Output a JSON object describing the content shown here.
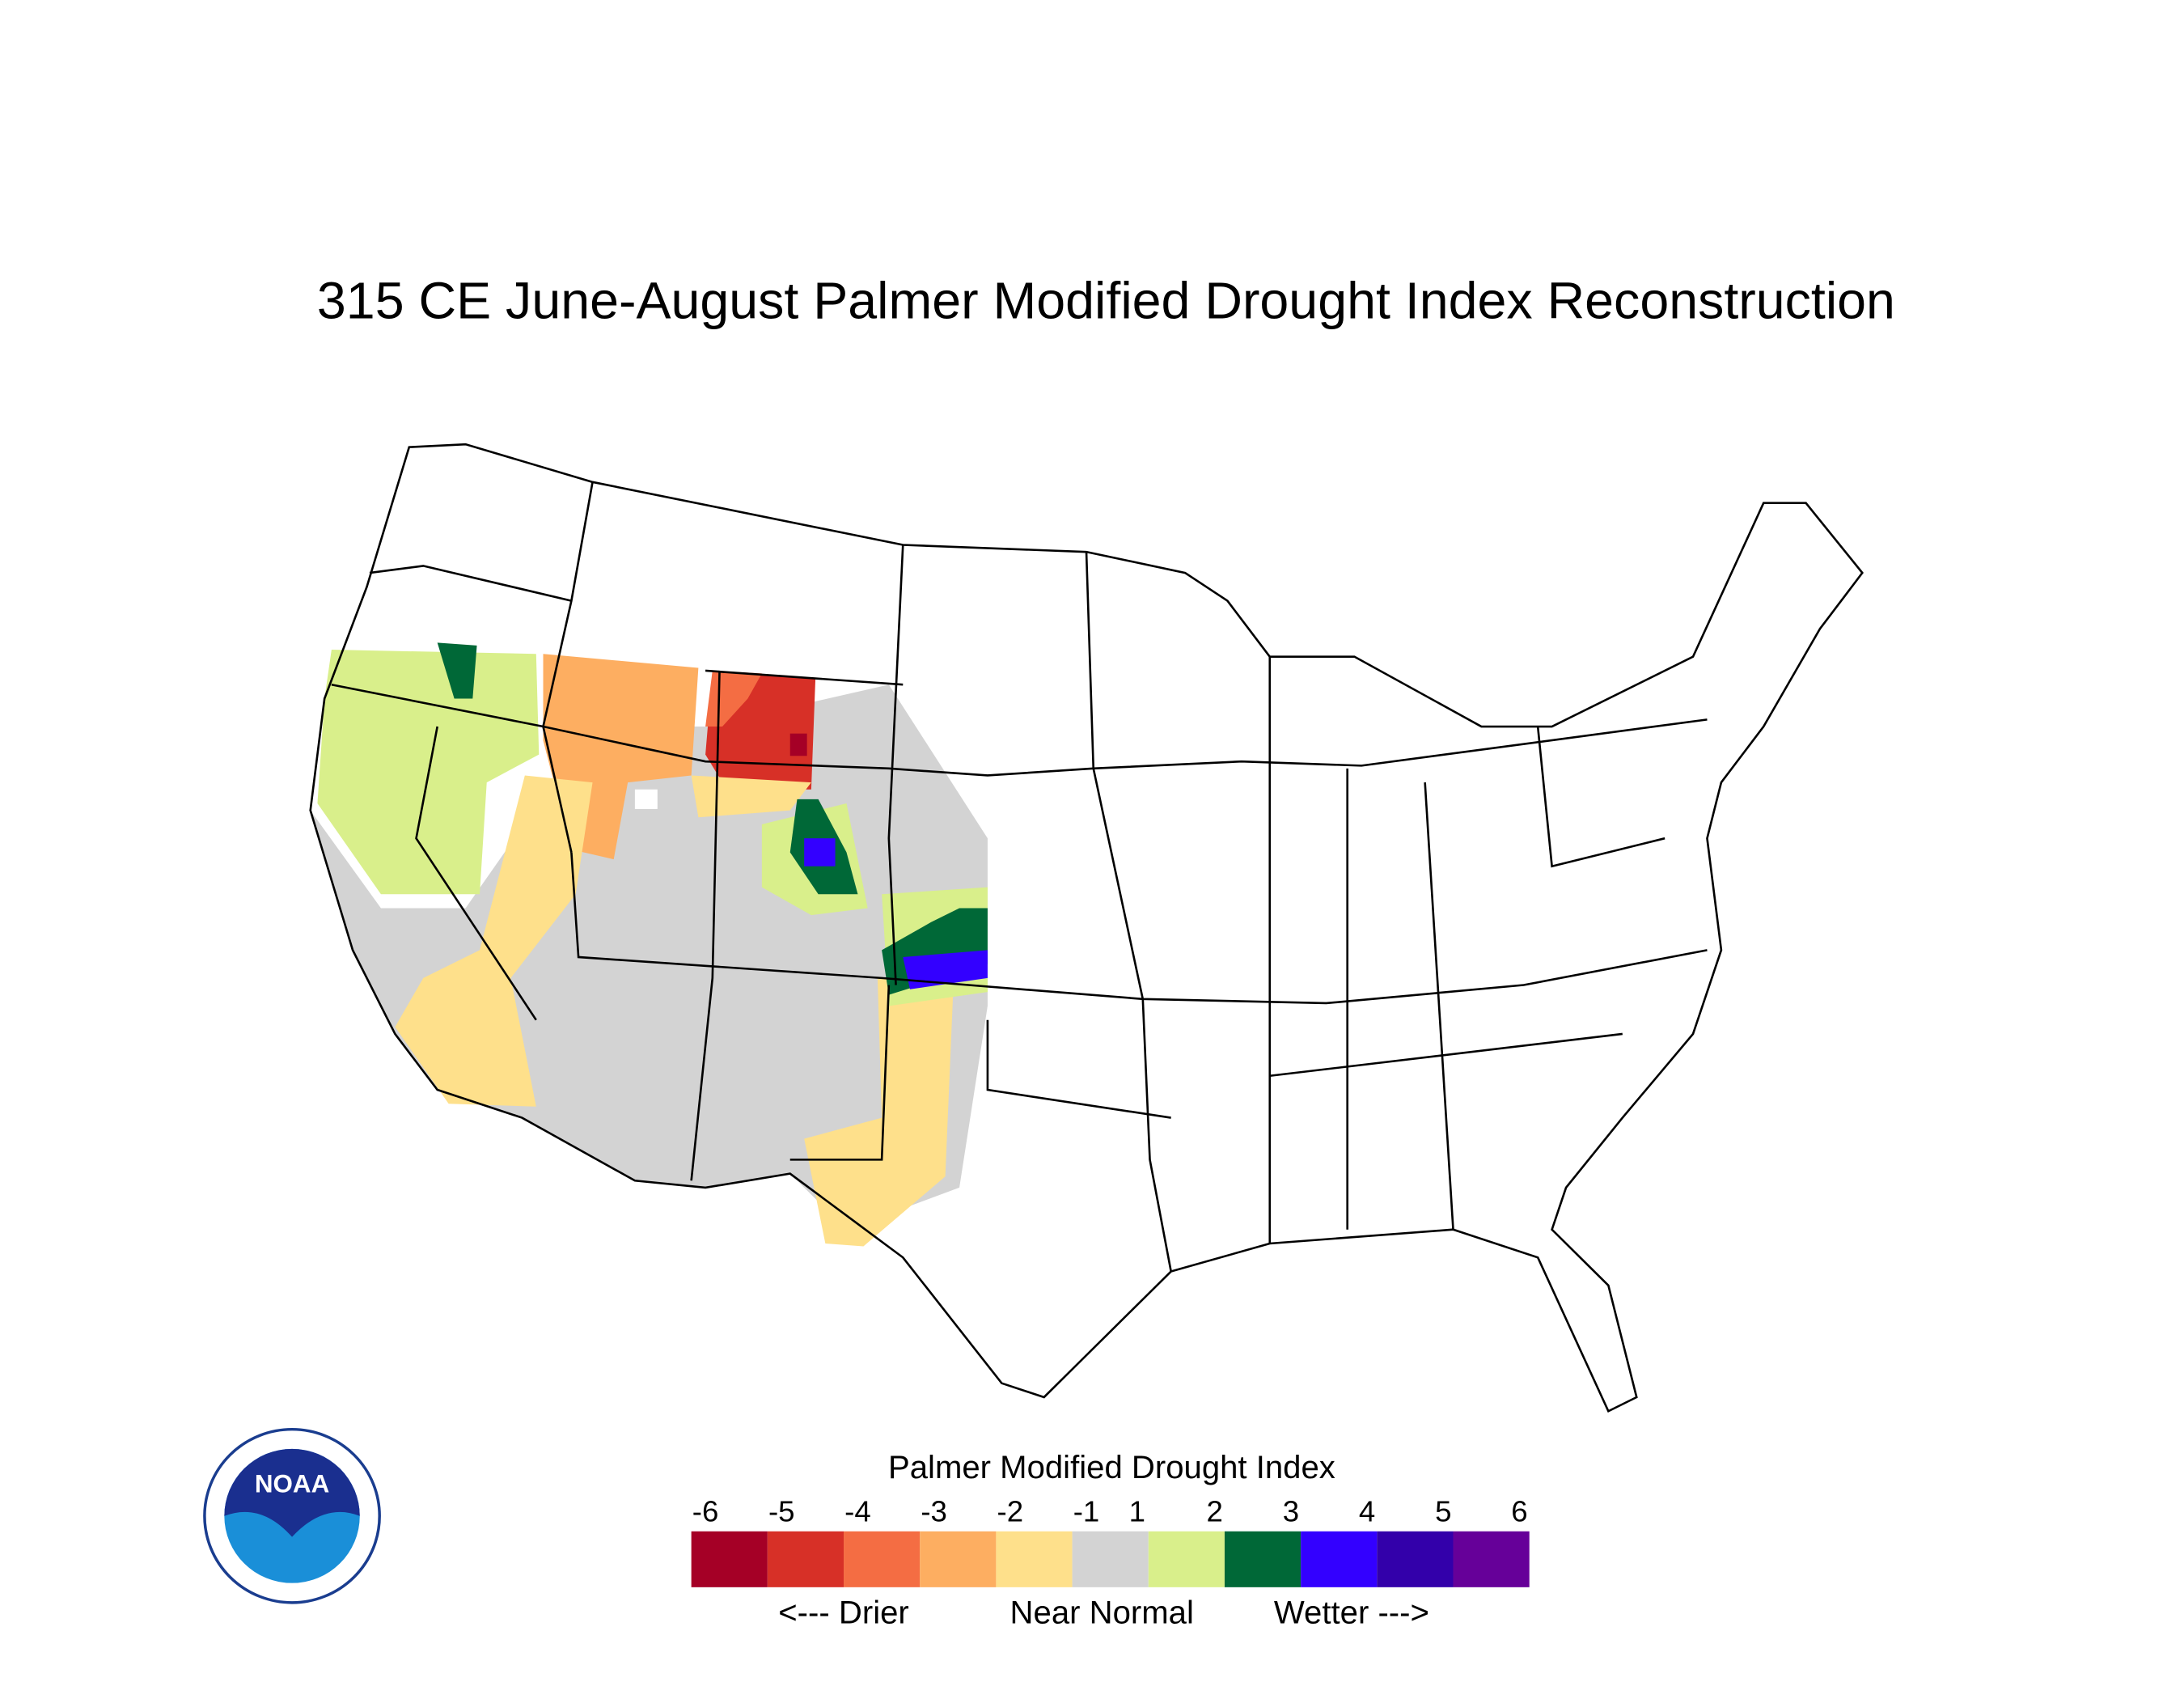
{
  "title": "315 CE  June-August  Palmer Modified Drought Index Reconstruction",
  "legend": {
    "title": "Palmer Modified Drought Index",
    "labels": [
      -6,
      -5,
      -4,
      -3,
      -2,
      -1,
      1,
      2,
      3,
      4,
      5,
      6
    ],
    "colors": [
      "#a50026",
      "#d73027",
      "#f46d43",
      "#fdae61",
      "#fee08b",
      "#d3d3d3",
      "#d9ef8b",
      "#006837",
      "#3300ff",
      "#3300aa",
      "#660099"
    ],
    "captions": [
      "<--- Drier",
      "Near Normal",
      "Wetter --->"
    ]
  },
  "logo": {
    "text": "NOAA"
  }
}
